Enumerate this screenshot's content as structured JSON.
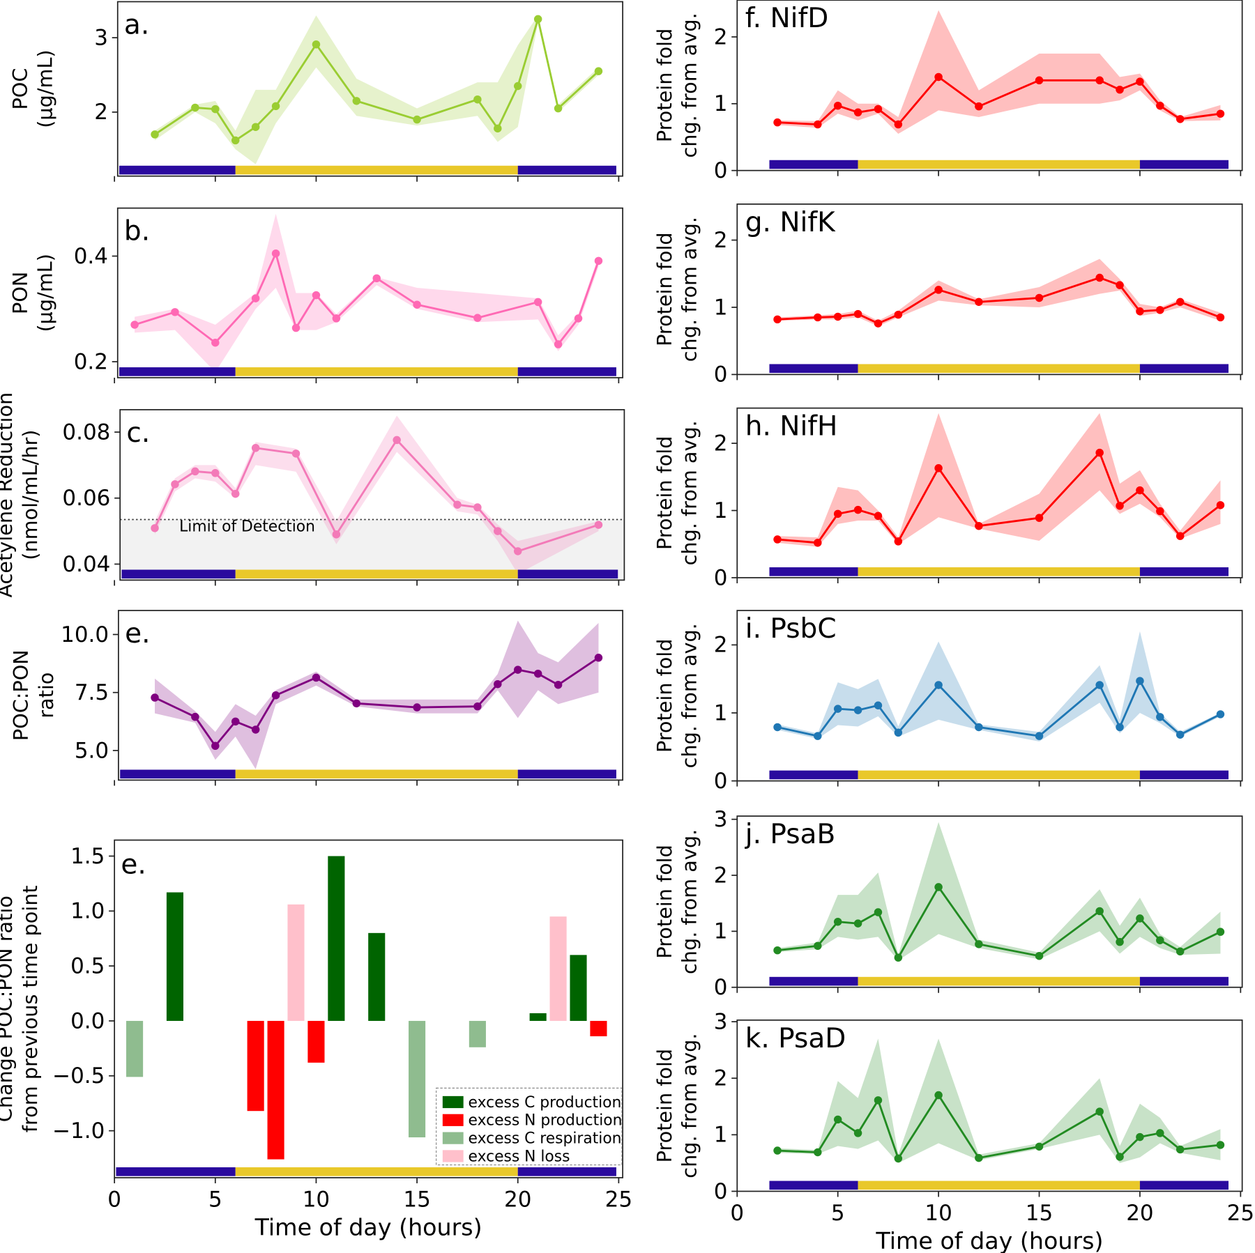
{
  "chart_data": {
    "type": "line",
    "colors": {
      "night": "#2a0a9e",
      "day": "#e9c82a"
    },
    "xlabel": "Time of day (hours)",
    "xticks": [
      0,
      5,
      10,
      15,
      20,
      25
    ],
    "xlim": [
      0,
      25
    ],
    "light_periods": [
      {
        "phase": "night",
        "from": 0,
        "to": 6
      },
      {
        "phase": "day",
        "from": 6,
        "to": 20
      },
      {
        "phase": "night",
        "from": 20,
        "to": 25
      }
    ],
    "panels": {
      "a": {
        "letter": "a.",
        "ylabel": [
          "POC",
          "(µg/mL)"
        ],
        "color": "#9acd32",
        "yticks": [
          2,
          3
        ],
        "x": [
          2,
          4,
          5,
          6,
          7,
          8,
          10,
          12,
          15,
          18,
          19,
          20,
          21,
          22,
          24
        ],
        "y": [
          1.7,
          2.06,
          2.04,
          1.62,
          1.8,
          2.08,
          2.91,
          2.15,
          1.9,
          2.17,
          1.78,
          2.35,
          3.25,
          2.05,
          2.55
        ],
        "lower": [
          1.62,
          2.0,
          1.85,
          1.5,
          1.3,
          1.85,
          2.6,
          1.95,
          1.82,
          1.95,
          1.6,
          1.8,
          3.2,
          2.0,
          2.5
        ],
        "upper": [
          1.75,
          2.1,
          2.15,
          1.75,
          2.3,
          2.3,
          3.3,
          2.45,
          2.05,
          2.4,
          2.4,
          2.9,
          3.3,
          2.1,
          2.6
        ]
      },
      "b": {
        "letter": "b.",
        "ylabel": [
          "PON",
          "(µg/mL)"
        ],
        "color": "#ff69b4",
        "yticks": [
          0.2,
          0.4
        ],
        "x": [
          1,
          3,
          5,
          7,
          8,
          9,
          10,
          11,
          13,
          15,
          18,
          21,
          22,
          23,
          24
        ],
        "y": [
          0.27,
          0.294,
          0.236,
          0.32,
          0.405,
          0.264,
          0.326,
          0.282,
          0.358,
          0.308,
          0.283,
          0.313,
          0.233,
          0.282,
          0.391
        ],
        "lower": [
          0.255,
          0.26,
          0.18,
          0.3,
          0.34,
          0.26,
          0.26,
          0.275,
          0.345,
          0.3,
          0.275,
          0.28,
          0.22,
          0.27,
          0.38
        ],
        "upper": [
          0.285,
          0.3,
          0.27,
          0.33,
          0.48,
          0.33,
          0.33,
          0.29,
          0.36,
          0.34,
          0.33,
          0.32,
          0.25,
          0.29,
          0.4
        ]
      },
      "c": {
        "letter": "c.",
        "ylabel": [
          "Acetylene Reduction",
          "(nmol/mL/hr)"
        ],
        "color": "#f37ab8",
        "yticks": [
          0.04,
          0.06,
          0.08
        ],
        "limit_of_detection": 0.0535,
        "lod_label": "Limit of Detection",
        "x": [
          2,
          3,
          4,
          5,
          6,
          7,
          9,
          11,
          14,
          17,
          18,
          19,
          20,
          24
        ],
        "y": [
          0.0509,
          0.0642,
          0.0681,
          0.0676,
          0.0613,
          0.0752,
          0.0735,
          0.049,
          0.0776,
          0.058,
          0.0572,
          0.05,
          0.0439,
          0.0519
        ],
        "lower": [
          0.049,
          0.062,
          0.066,
          0.065,
          0.06,
          0.07,
          0.068,
          0.046,
          0.074,
          0.056,
          0.055,
          0.047,
          0.037,
          0.05
        ],
        "upper": [
          0.053,
          0.066,
          0.07,
          0.07,
          0.063,
          0.077,
          0.075,
          0.053,
          0.085,
          0.06,
          0.058,
          0.052,
          0.047,
          0.053
        ]
      },
      "e": {
        "letter": "e.",
        "ylabel": [
          "POC:PON",
          "ratio"
        ],
        "color": "#800080",
        "yticks": [
          5.0,
          7.5,
          10.0
        ],
        "x": [
          2,
          4,
          5,
          6,
          7,
          8,
          10,
          12,
          15,
          18,
          19,
          20,
          21,
          22,
          24
        ],
        "y": [
          7.28,
          6.45,
          5.2,
          6.25,
          5.9,
          7.38,
          8.14,
          7.03,
          6.86,
          6.9,
          7.86,
          8.48,
          8.31,
          7.83,
          9.0
        ],
        "lower": [
          6.6,
          6.2,
          4.6,
          5.6,
          4.2,
          7.0,
          7.8,
          6.9,
          6.6,
          6.6,
          7.6,
          6.4,
          7.6,
          7.0,
          7.5
        ],
        "upper": [
          8.1,
          6.7,
          5.8,
          7.0,
          6.5,
          7.6,
          8.4,
          7.2,
          7.2,
          7.2,
          8.3,
          10.6,
          9.2,
          8.8,
          10.5
        ]
      },
      "f": {
        "letter": "f. NifD",
        "ylabel": [
          "Protein fold",
          "chg. from avg."
        ],
        "color": "#ff0000",
        "yticks": [
          0,
          1,
          2
        ],
        "x": [
          2,
          4,
          5,
          6,
          7,
          8,
          10,
          12,
          15,
          18,
          19,
          20,
          21,
          22,
          24
        ],
        "y": [
          0.72,
          0.69,
          0.97,
          0.87,
          0.92,
          0.69,
          1.4,
          0.96,
          1.35,
          1.35,
          1.21,
          1.33,
          0.97,
          0.77,
          0.85
        ],
        "lower": [
          0.68,
          0.64,
          0.85,
          0.75,
          0.85,
          0.55,
          0.9,
          0.8,
          1.0,
          1.0,
          1.05,
          1.2,
          0.9,
          0.74,
          0.75
        ],
        "upper": [
          0.75,
          0.74,
          1.2,
          1.0,
          1.0,
          0.8,
          2.4,
          1.2,
          1.75,
          1.75,
          1.4,
          1.45,
          1.05,
          0.8,
          0.98
        ]
      },
      "g": {
        "letter": "g. NifK",
        "ylabel": [
          "Protein fold",
          "chg. from avg."
        ],
        "color": "#ff0000",
        "yticks": [
          0,
          1,
          2
        ],
        "x": [
          2,
          4,
          5,
          6,
          7,
          8,
          10,
          12,
          15,
          18,
          19,
          20,
          21,
          22,
          24
        ],
        "y": [
          0.82,
          0.85,
          0.86,
          0.9,
          0.76,
          0.89,
          1.26,
          1.08,
          1.14,
          1.44,
          1.33,
          0.94,
          0.96,
          1.08,
          0.85
        ],
        "lower": [
          0.8,
          0.82,
          0.82,
          0.85,
          0.72,
          0.85,
          1.1,
          1.03,
          1.0,
          1.2,
          1.25,
          0.87,
          0.92,
          1.0,
          0.8
        ],
        "upper": [
          0.85,
          0.88,
          0.9,
          0.95,
          0.8,
          0.95,
          1.4,
          1.12,
          1.3,
          1.72,
          1.42,
          1.05,
          1.0,
          1.12,
          0.92
        ]
      },
      "h": {
        "letter": "h. NifH",
        "ylabel": [
          "Protein fold",
          "chg. from avg."
        ],
        "color": "#ff0000",
        "yticks": [
          0,
          1,
          2
        ],
        "x": [
          2,
          4,
          5,
          6,
          7,
          8,
          10,
          12,
          15,
          18,
          19,
          20,
          21,
          22,
          24
        ],
        "y": [
          0.57,
          0.52,
          0.95,
          1.01,
          0.92,
          0.54,
          1.63,
          0.77,
          0.89,
          1.86,
          1.07,
          1.3,
          0.99,
          0.62,
          1.08
        ],
        "lower": [
          0.52,
          0.46,
          0.8,
          0.85,
          0.85,
          0.5,
          0.9,
          0.73,
          0.55,
          1.3,
          0.95,
          1.1,
          0.9,
          0.58,
          0.8
        ],
        "upper": [
          0.62,
          0.6,
          1.35,
          1.3,
          1.0,
          0.6,
          2.45,
          0.8,
          1.25,
          2.45,
          1.4,
          1.6,
          1.1,
          0.7,
          1.45
        ]
      },
      "i": {
        "letter": "i. PsbC",
        "ylabel": [
          "Protein fold",
          "chg. from avg."
        ],
        "color": "#1f77b4",
        "yticks": [
          0,
          1,
          2
        ],
        "x": [
          2,
          4,
          5,
          6,
          7,
          8,
          10,
          12,
          15,
          18,
          19,
          20,
          21,
          22,
          24
        ],
        "y": [
          0.79,
          0.66,
          1.06,
          1.04,
          1.11,
          0.71,
          1.41,
          0.79,
          0.66,
          1.41,
          0.79,
          1.47,
          0.94,
          0.68,
          0.98
        ],
        "lower": [
          0.75,
          0.62,
          0.82,
          0.8,
          0.95,
          0.65,
          0.9,
          0.75,
          0.58,
          1.15,
          0.7,
          1.0,
          0.85,
          0.65,
          0.95
        ],
        "upper": [
          0.83,
          0.7,
          1.45,
          1.35,
          1.5,
          0.8,
          2.05,
          0.83,
          0.72,
          1.7,
          0.9,
          2.2,
          1.0,
          0.72,
          1.0
        ]
      },
      "j": {
        "letter": "j. PsaB",
        "ylabel": [
          "Protein fold",
          "chg. from avg."
        ],
        "color": "#228b22",
        "yticks": [
          0,
          1,
          2,
          3
        ],
        "x": [
          2,
          4,
          5,
          6,
          7,
          8,
          10,
          12,
          15,
          18,
          19,
          20,
          21,
          22,
          24
        ],
        "y": [
          0.66,
          0.74,
          1.17,
          1.14,
          1.34,
          0.53,
          1.79,
          0.77,
          0.56,
          1.36,
          0.81,
          1.23,
          0.84,
          0.64,
          0.99
        ],
        "lower": [
          0.63,
          0.68,
          0.9,
          0.85,
          0.9,
          0.48,
          0.95,
          0.7,
          0.5,
          1.0,
          0.6,
          0.9,
          0.7,
          0.58,
          0.6
        ],
        "upper": [
          0.7,
          0.8,
          1.65,
          1.65,
          2.05,
          0.58,
          2.95,
          0.85,
          0.62,
          1.75,
          1.1,
          1.6,
          0.95,
          0.72,
          1.35
        ]
      },
      "k": {
        "letter": "k. PsaD",
        "ylabel": [
          "Protein fold",
          "chg. from avg."
        ],
        "color": "#228b22",
        "yticks": [
          0,
          1,
          2,
          3
        ],
        "x": [
          2,
          4,
          5,
          6,
          7,
          8,
          10,
          12,
          15,
          18,
          19,
          20,
          21,
          22,
          24
        ],
        "y": [
          0.72,
          0.69,
          1.27,
          1.03,
          1.61,
          0.58,
          1.7,
          0.59,
          0.79,
          1.41,
          0.61,
          0.96,
          1.03,
          0.74,
          0.82
        ],
        "lower": [
          0.68,
          0.66,
          0.8,
          0.75,
          0.9,
          0.5,
          0.85,
          0.55,
          0.75,
          1.0,
          0.5,
          0.6,
          0.85,
          0.68,
          0.55
        ],
        "upper": [
          0.76,
          0.73,
          1.95,
          1.65,
          2.7,
          0.65,
          2.7,
          0.65,
          0.85,
          2.0,
          0.8,
          1.55,
          1.3,
          0.8,
          1.1
        ]
      }
    },
    "bar_panel": {
      "type": "bar",
      "letter": "e.",
      "ylabel": [
        "Change POC:PON ratio",
        "from previous time point"
      ],
      "yticks": [
        -1.0,
        -0.5,
        0.0,
        0.5,
        1.0,
        1.5
      ],
      "yticklabels": [
        "−1.0",
        "−0.5",
        "0.0",
        "0.5",
        "1.0",
        "1.5"
      ],
      "legend_position": "bottom-right",
      "categories": {
        "c_prod": {
          "label": "excess C production",
          "color": "#006400"
        },
        "n_prod": {
          "label": "excess N production",
          "color": "#ff0000"
        },
        "c_resp": {
          "label": "excess C respiration",
          "color": "#8fbc8f"
        },
        "n_loss": {
          "label": "excess N loss",
          "color": "#ffc0cb"
        }
      },
      "bars": [
        {
          "x": 1,
          "value": -0.51,
          "cat": "c_resp"
        },
        {
          "x": 3,
          "value": 1.17,
          "cat": "c_prod"
        },
        {
          "x": 7,
          "value": -0.82,
          "cat": "n_prod"
        },
        {
          "x": 8,
          "value": -1.26,
          "cat": "n_prod"
        },
        {
          "x": 9,
          "value": 1.06,
          "cat": "n_loss"
        },
        {
          "x": 10,
          "value": -0.38,
          "cat": "n_prod"
        },
        {
          "x": 11,
          "value": 1.5,
          "cat": "c_prod"
        },
        {
          "x": 13,
          "value": 0.8,
          "cat": "c_prod"
        },
        {
          "x": 15,
          "value": -1.06,
          "cat": "c_resp"
        },
        {
          "x": 18,
          "value": -0.24,
          "cat": "c_resp"
        },
        {
          "x": 21,
          "value": 0.07,
          "cat": "c_prod"
        },
        {
          "x": 22,
          "value": 0.95,
          "cat": "n_loss"
        },
        {
          "x": 23,
          "value": 0.6,
          "cat": "c_prod"
        },
        {
          "x": 24,
          "value": -0.14,
          "cat": "n_prod"
        }
      ]
    }
  }
}
